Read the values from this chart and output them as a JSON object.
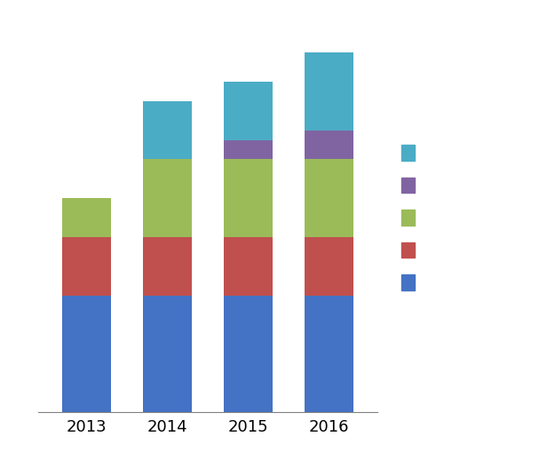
{
  "years": [
    "2013",
    "2014",
    "2015",
    "2016"
  ],
  "segments": {
    "blue": [
      3.0,
      3.0,
      3.0,
      3.0
    ],
    "red": [
      1.5,
      1.5,
      1.5,
      1.5
    ],
    "green": [
      1.0,
      2.0,
      2.0,
      2.0
    ],
    "purple": [
      0.0,
      0.0,
      0.5,
      0.75
    ],
    "cyan": [
      0.0,
      1.5,
      1.5,
      2.0
    ]
  },
  "colors": {
    "blue": "#4472C4",
    "red": "#C0504D",
    "green": "#9BBB59",
    "purple": "#8064A2",
    "cyan": "#4BACC6"
  },
  "legend_order": [
    "cyan",
    "purple",
    "green",
    "red",
    "blue"
  ],
  "ylim": [
    0,
    10
  ],
  "n_gridlines": 10,
  "background_color": "#ffffff",
  "bar_width": 0.6,
  "x_label_fontsize": 13,
  "grid_color": "#AAAAAA",
  "grid_linewidth": 0.8,
  "spine_color": "#808080",
  "figsize": [
    6.16,
    5.27
  ],
  "dpi": 100
}
